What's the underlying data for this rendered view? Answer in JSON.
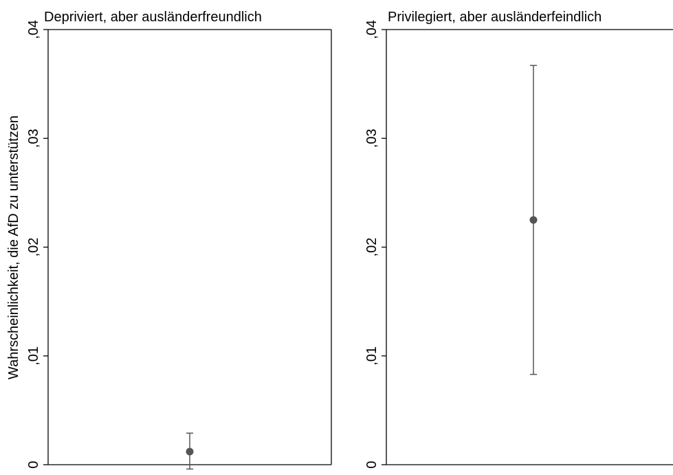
{
  "chart_data": {
    "type": "scatter",
    "ylabel": "Wahrscheinlichkeit, die AfD zu unterstützen",
    "yticks": [
      {
        "value": 0,
        "label": "0"
      },
      {
        "value": 0.01,
        "label": ",01"
      },
      {
        "value": 0.02,
        "label": ",02"
      },
      {
        "value": 0.03,
        "label": ",03"
      },
      {
        "value": 0.04,
        "label": ",04"
      }
    ],
    "ylim": [
      0,
      0.04
    ],
    "panels": [
      {
        "title": "Depriviert, aber ausländerfreundlich",
        "point": {
          "estimate": 0.0012,
          "ci_low": -0.0004,
          "ci_high": 0.0029
        }
      },
      {
        "title": "Privilegiert, aber ausländerfeindlich",
        "point": {
          "estimate": 0.0225,
          "ci_low": 0.0083,
          "ci_high": 0.0367
        }
      }
    ],
    "colors": {
      "marker": "#555555",
      "axis": "#000000"
    }
  }
}
